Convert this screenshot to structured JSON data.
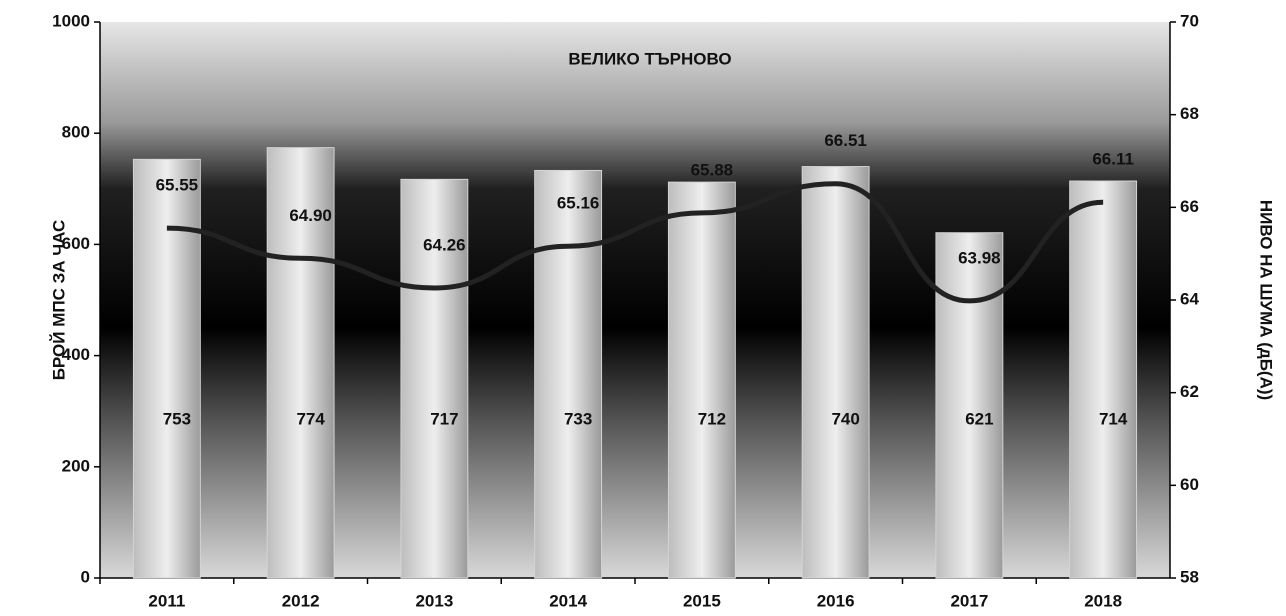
{
  "chart_data": {
    "type": "bar",
    "title": "ВЕЛИКО ТЪРНОВО",
    "y_label": "БРОЙ МПС ЗА ЧАС",
    "y2_label": "НИВО НА ШУМА (дБ(А))",
    "categories": [
      "2011",
      "2012",
      "2013",
      "2014",
      "2015",
      "2016",
      "2017",
      "2018"
    ],
    "series": [
      {
        "type": "bar",
        "color": "#d4d4d4",
        "values": [
          753,
          774,
          717,
          733,
          712,
          740,
          621,
          714
        ]
      },
      {
        "type": "line",
        "axis": "y2",
        "color": "#222222",
        "values": [
          65.55,
          64.9,
          64.26,
          65.16,
          65.88,
          66.51,
          63.98,
          66.11
        ],
        "value_labels": [
          "65.55",
          "64.90",
          "64.26",
          "65.16",
          "65.88",
          "66.51",
          "63.98",
          "66.11"
        ]
      }
    ],
    "ylim": [
      0,
      1000
    ],
    "yticks": [
      0,
      200,
      400,
      600,
      800,
      1000
    ],
    "y2lim": [
      58,
      70
    ],
    "y2ticks": [
      58,
      60,
      62,
      64,
      66,
      68,
      70
    ]
  }
}
